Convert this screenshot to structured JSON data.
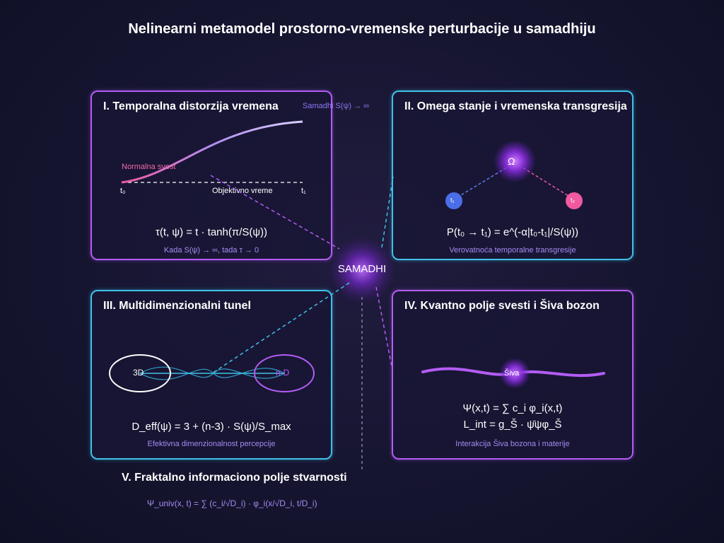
{
  "title": "Nelinearni metamodel prostorno-vremenske perturbacije u samadhiju",
  "center": {
    "label": "SAMADHI"
  },
  "colors": {
    "purple": "#b45cf5",
    "cyan": "#3fc2e8",
    "pink": "#f05aa0",
    "blue": "#4a6ee8",
    "caption": "#a48cf2"
  },
  "panels": {
    "p1": {
      "title": "I. Temporalna distorzija vremena",
      "curve_label": "Samadhi S(ψ) → ∞",
      "normal_label": "Normalna svest",
      "axis_start": "t₀",
      "axis_mid": "Objektivno vreme",
      "axis_end": "t₁",
      "formula": "τ(t, ψ) = t · tanh(π/S(ψ))",
      "caption": "Kada S(ψ) → ∞, tada τ → 0"
    },
    "p2": {
      "title": "II. Omega stanje i vremenska transgresija",
      "omega": "Ω",
      "node_left": "t₁",
      "node_right": "t₂",
      "formula": "P(t₀ → t₁) = e^(-α|t₀-t₁|/S(ψ))",
      "caption": "Verovatnoća temporalne transgresije"
    },
    "p3": {
      "title": "III. Multidimenzionalni tunel",
      "left_label": "3D",
      "right_label": "n-D",
      "formula": "D_eff(ψ) = 3 + (n-3) · S(ψ)/S_max",
      "caption": "Efektivna dimenzionalnost percepcije"
    },
    "p4": {
      "title": "IV. Kvantno polje svesti i Šiva bozon",
      "boson": "Šiva",
      "formula1": "Ψ(x,t) = ∑ c_i φ_i(x,t)",
      "formula2": "L_int = g_Š · ψ̄ψφ_Š",
      "caption": "Interakcija Šiva bozona i materije"
    }
  },
  "section5": {
    "title": "V. Fraktalno informaciono polje stvarnosti",
    "formula": "Ψ_univ(x, t) = ∑ (c_i/√D_i) · φ_i(x/√D_i, t/D_i)"
  }
}
